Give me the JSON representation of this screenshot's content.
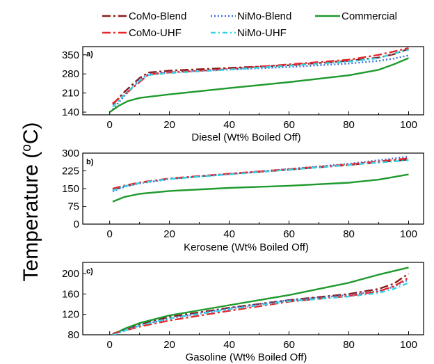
{
  "figure": {
    "ylabel_main": "Temperature (",
    "ylabel_sup": "o",
    "ylabel_end": "C)"
  },
  "legend": [
    {
      "name": "CoMo-Blend",
      "color": "#8b1a1a",
      "dash": "12,4,3,4"
    },
    {
      "name": "NiMo-Blend",
      "color": "#3a6fd8",
      "dash": "2,3"
    },
    {
      "name": "Commercial",
      "color": "#1f9a2e",
      "dash": ""
    },
    {
      "name": "CoMo-UHF",
      "color": "#e8262b",
      "dash": "12,4,3,4"
    },
    {
      "name": "NiMo-UHF",
      "color": "#2fd3e8",
      "dash": "7,4,2,4"
    }
  ],
  "chart_data": [
    {
      "type": "line",
      "panel_label": "a)",
      "xlabel": "Diesel (Wt% Boiled Off)",
      "ylabel": "",
      "xlim": [
        -9,
        105
      ],
      "ylim": [
        130,
        380
      ],
      "xticks": [
        0,
        20,
        40,
        60,
        80,
        100
      ],
      "xtick_labels": [
        "0",
        "20",
        "40",
        "60",
        "80",
        "100"
      ],
      "yticks": [
        140,
        210,
        280,
        350
      ],
      "ytick_labels": [
        "140",
        "210",
        "280",
        "350"
      ],
      "series": [
        {
          "name": "CoMo-Blend",
          "x": [
            1,
            5,
            10,
            13,
            20,
            40,
            60,
            80,
            90,
            95,
            100
          ],
          "y": [
            168,
            215,
            265,
            285,
            292,
            302,
            312,
            328,
            340,
            352,
            372
          ]
        },
        {
          "name": "NiMo-Blend",
          "x": [
            1,
            5,
            10,
            13,
            20,
            40,
            60,
            80,
            90,
            95,
            100
          ],
          "y": [
            150,
            200,
            258,
            280,
            286,
            296,
            305,
            318,
            328,
            336,
            348
          ]
        },
        {
          "name": "Commercial",
          "x": [
            0,
            3,
            6,
            10,
            20,
            40,
            60,
            80,
            90,
            95,
            100
          ],
          "y": [
            140,
            163,
            180,
            192,
            205,
            228,
            250,
            275,
            295,
            315,
            338
          ]
        },
        {
          "name": "CoMo-UHF",
          "x": [
            1,
            5,
            10,
            13,
            20,
            40,
            60,
            80,
            90,
            95,
            100
          ],
          "y": [
            172,
            205,
            250,
            278,
            285,
            298,
            315,
            332,
            350,
            362,
            375
          ]
        },
        {
          "name": "NiMo-UHF",
          "x": [
            1,
            5,
            10,
            13,
            20,
            40,
            60,
            80,
            90,
            95,
            100
          ],
          "y": [
            160,
            205,
            255,
            276,
            283,
            296,
            310,
            325,
            338,
            355,
            368
          ]
        }
      ]
    },
    {
      "type": "line",
      "panel_label": "b)",
      "xlabel": "Kerosene (Wt% Boiled Off)",
      "ylabel": "",
      "xlim": [
        -9,
        105
      ],
      "ylim": [
        0,
        300
      ],
      "xticks": [
        0,
        20,
        40,
        60,
        80,
        100
      ],
      "xtick_labels": [
        "0",
        "20",
        "40",
        "60",
        "80",
        "100"
      ],
      "yticks": [
        0,
        75,
        150,
        225,
        300
      ],
      "ytick_labels": [
        "0",
        "75",
        "150",
        "225",
        "300"
      ],
      "series": [
        {
          "name": "CoMo-Blend",
          "x": [
            1,
            5,
            10,
            20,
            40,
            60,
            80,
            100
          ],
          "y": [
            145,
            160,
            175,
            192,
            212,
            230,
            250,
            273
          ]
        },
        {
          "name": "NiMo-Blend",
          "x": [
            1,
            5,
            10,
            20,
            40,
            60,
            80,
            100
          ],
          "y": [
            138,
            158,
            172,
            190,
            212,
            233,
            255,
            285
          ]
        },
        {
          "name": "Commercial",
          "x": [
            1,
            5,
            10,
            20,
            40,
            60,
            80,
            90,
            100
          ],
          "y": [
            95,
            115,
            128,
            140,
            153,
            162,
            175,
            188,
            210
          ]
        },
        {
          "name": "CoMo-UHF",
          "x": [
            1,
            5,
            10,
            20,
            40,
            60,
            80,
            100
          ],
          "y": [
            150,
            163,
            176,
            193,
            213,
            232,
            252,
            278
          ]
        },
        {
          "name": "NiMo-UHF",
          "x": [
            1,
            5,
            10,
            20,
            40,
            60,
            80,
            100
          ],
          "y": [
            142,
            160,
            174,
            191,
            210,
            230,
            250,
            270
          ]
        }
      ]
    },
    {
      "type": "line",
      "panel_label": "c)",
      "xlabel": "Gasoline (Wt% Boiled Off)",
      "ylabel": "",
      "xlim": [
        -9,
        105
      ],
      "ylim": [
        80,
        222
      ],
      "xticks": [
        0,
        20,
        40,
        60,
        80,
        100
      ],
      "xtick_labels": [
        "0",
        "20",
        "40",
        "60",
        "80",
        "100"
      ],
      "yticks": [
        80,
        120,
        160,
        200
      ],
      "ytick_labels": [
        "80",
        "120",
        "160",
        "200"
      ],
      "series": [
        {
          "name": "CoMo-Blend",
          "x": [
            1,
            5,
            10,
            20,
            40,
            60,
            80,
            90,
            95,
            100
          ],
          "y": [
            82,
            90,
            100,
            115,
            133,
            148,
            160,
            170,
            180,
            200
          ]
        },
        {
          "name": "NiMo-Blend",
          "x": [
            1,
            5,
            10,
            20,
            40,
            60,
            80,
            90,
            95,
            100
          ],
          "y": [
            80,
            89,
            98,
            112,
            132,
            148,
            158,
            166,
            174,
            188
          ]
        },
        {
          "name": "Commercial",
          "x": [
            1,
            5,
            10,
            20,
            40,
            60,
            80,
            90,
            100
          ],
          "y": [
            80,
            92,
            103,
            118,
            138,
            158,
            182,
            198,
            212
          ]
        },
        {
          "name": "CoMo-UHF",
          "x": [
            1,
            5,
            10,
            20,
            40,
            60,
            80,
            90,
            95,
            100
          ],
          "y": [
            82,
            88,
            96,
            108,
            127,
            145,
            156,
            165,
            175,
            192
          ]
        },
        {
          "name": "NiMo-UHF",
          "x": [
            1,
            5,
            10,
            20,
            40,
            60,
            80,
            90,
            95,
            100
          ],
          "y": [
            79,
            88,
            98,
            112,
            130,
            146,
            155,
            162,
            170,
            182
          ]
        }
      ]
    }
  ]
}
